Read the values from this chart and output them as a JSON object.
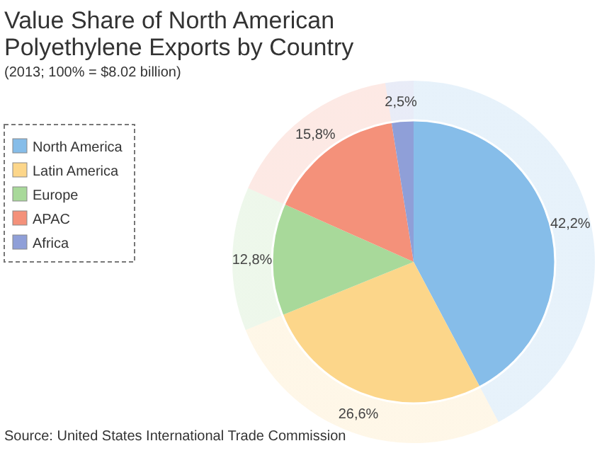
{
  "chart_data": {
    "type": "pie",
    "title": "Value Share of North American Polyethylene Exports by Country",
    "subtitle": "(2013; 100% = $8.02 billion)",
    "categories": [
      "North America",
      "Latin America",
      "Europe",
      "APAC",
      "Africa"
    ],
    "values": [
      42.2,
      26.6,
      12.8,
      15.8,
      2.5
    ],
    "value_labels": [
      "42,2%",
      "26,6%",
      "12,8%",
      "15,8%",
      "2,5%"
    ],
    "colors": [
      "#86bde9",
      "#fcd68a",
      "#a8d99a",
      "#f4917a",
      "#8f9fd8"
    ],
    "legend": "top left",
    "annotations": [
      "Source: United States International Trade Commission"
    ]
  }
}
